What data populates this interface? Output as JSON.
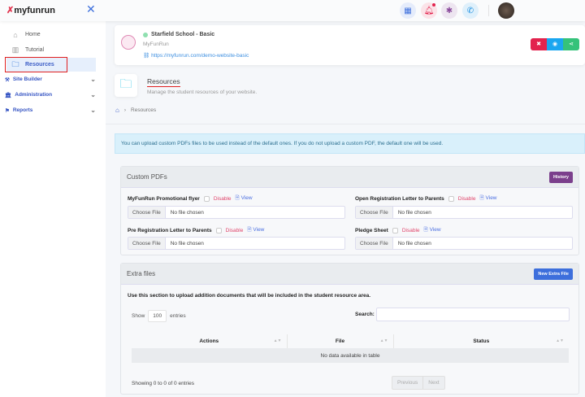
{
  "brand": {
    "name": "myfunrun"
  },
  "topbar": {
    "icons": [
      "apps-grid-icon",
      "bell-icon",
      "bug-icon",
      "phone-icon"
    ]
  },
  "sidebar": {
    "items": [
      {
        "label": "Home"
      },
      {
        "label": "Tutorial"
      },
      {
        "label": "Resources"
      }
    ],
    "sections": [
      {
        "label": "Site Builder"
      },
      {
        "label": "Administration"
      },
      {
        "label": "Reports"
      }
    ]
  },
  "school": {
    "name": "Starfield School - Basic",
    "org": "MyFunRun",
    "url": "https://myfunrun.com/demo-website-basic"
  },
  "page": {
    "title": "Resources",
    "subtitle": "Manage the student resources of your website.",
    "breadcrumb": "Resources"
  },
  "alert": "You can upload custom PDFs files to be used instead of the default ones. If you do not upload a custom PDF, the default one will be used.",
  "custom_pdfs": {
    "title": "Custom PDFs",
    "history": "History",
    "disable": "Disable",
    "view": "View",
    "choose": "Choose File",
    "no_file": "No file chosen",
    "items": [
      {
        "label": "MyFunRun Promotional flyer"
      },
      {
        "label": "Open Registration Letter to Parents"
      },
      {
        "label": "Pre Registration Letter to Parents"
      },
      {
        "label": "Pledge Sheet"
      }
    ]
  },
  "extra": {
    "title": "Extra files",
    "new_button": "New Extra File",
    "description": "Use this section to upload addition documents that will be included in the student resource area.",
    "show": "Show",
    "entries_value": "100",
    "entries": "entries",
    "search": "Search:",
    "columns": [
      "Actions",
      "File",
      "Status"
    ],
    "empty": "No data available in table",
    "info": "Showing 0 to 0 of 0 entries",
    "prev": "Previous",
    "next": "Next"
  },
  "colors": {
    "primary": "#3d6fdc",
    "history": "#7b3f8c",
    "danger": "#e2234e",
    "info": "#1aa6f0",
    "success": "#35c27a"
  }
}
